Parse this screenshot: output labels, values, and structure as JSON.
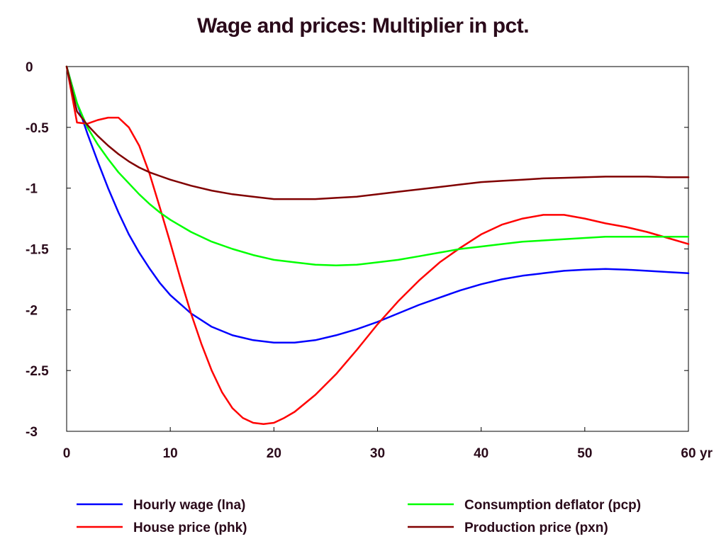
{
  "chart_data": {
    "type": "line",
    "title": "Wage and prices: Multiplier in pct.",
    "xlabel": "",
    "ylabel": "",
    "x_unit": "yr",
    "xlim": [
      0,
      60
    ],
    "ylim": [
      -3,
      0
    ],
    "x_ticks": [
      0,
      10,
      20,
      30,
      40,
      50,
      60
    ],
    "y_ticks": [
      0,
      -0.5,
      -1,
      -1.5,
      -2,
      -2.5,
      -3
    ],
    "x_tick_labels": [
      "0",
      "10",
      "20",
      "30",
      "40",
      "50",
      "60"
    ],
    "y_tick_labels": [
      "0",
      "-0.5",
      "-1",
      "-1.5",
      "-2",
      "-2.5",
      "-3"
    ],
    "grid": false,
    "legend_position": "bottom",
    "series": [
      {
        "name": "Hourly wage (lna)",
        "color": "#0000ff",
        "x": [
          0,
          1,
          2,
          3,
          4,
          5,
          6,
          7,
          8,
          9,
          10,
          12,
          14,
          16,
          18,
          20,
          22,
          24,
          26,
          28,
          30,
          32,
          34,
          36,
          38,
          40,
          42,
          44,
          46,
          48,
          50,
          52,
          54,
          56,
          58,
          60
        ],
        "values": [
          0,
          -0.3,
          -0.55,
          -0.78,
          -1.0,
          -1.2,
          -1.38,
          -1.53,
          -1.66,
          -1.78,
          -1.88,
          -2.03,
          -2.14,
          -2.21,
          -2.25,
          -2.27,
          -2.27,
          -2.25,
          -2.21,
          -2.16,
          -2.1,
          -2.03,
          -1.96,
          -1.9,
          -1.84,
          -1.79,
          -1.75,
          -1.72,
          -1.7,
          -1.68,
          -1.67,
          -1.665,
          -1.67,
          -1.68,
          -1.69,
          -1.7
        ]
      },
      {
        "name": "House price (phk)",
        "color": "#ff0000",
        "x": [
          0,
          1,
          2,
          3,
          4,
          5,
          6,
          7,
          8,
          9,
          10,
          11,
          12,
          13,
          14,
          15,
          16,
          17,
          18,
          19,
          20,
          21,
          22,
          24,
          26,
          28,
          30,
          32,
          34,
          36,
          38,
          40,
          42,
          44,
          46,
          48,
          50,
          52,
          54,
          56,
          58,
          60
        ],
        "values": [
          0,
          -0.46,
          -0.47,
          -0.44,
          -0.42,
          -0.42,
          -0.5,
          -0.65,
          -0.88,
          -1.16,
          -1.45,
          -1.75,
          -2.03,
          -2.28,
          -2.5,
          -2.68,
          -2.81,
          -2.89,
          -2.93,
          -2.94,
          -2.93,
          -2.89,
          -2.84,
          -2.7,
          -2.53,
          -2.33,
          -2.12,
          -1.93,
          -1.76,
          -1.61,
          -1.49,
          -1.38,
          -1.3,
          -1.25,
          -1.22,
          -1.22,
          -1.25,
          -1.29,
          -1.32,
          -1.36,
          -1.41,
          -1.46
        ]
      },
      {
        "name": "Consumption deflator (pcp)",
        "color": "#00ff00",
        "x": [
          0,
          1,
          2,
          3,
          4,
          5,
          6,
          7,
          8,
          9,
          10,
          12,
          14,
          16,
          18,
          20,
          22,
          24,
          26,
          28,
          30,
          32,
          34,
          36,
          38,
          40,
          42,
          44,
          46,
          48,
          50,
          52,
          54,
          56,
          58,
          60
        ],
        "values": [
          0,
          -0.3,
          -0.5,
          -0.64,
          -0.76,
          -0.87,
          -0.96,
          -1.05,
          -1.13,
          -1.2,
          -1.26,
          -1.36,
          -1.44,
          -1.5,
          -1.55,
          -1.59,
          -1.61,
          -1.63,
          -1.635,
          -1.63,
          -1.61,
          -1.59,
          -1.56,
          -1.53,
          -1.5,
          -1.48,
          -1.46,
          -1.44,
          -1.43,
          -1.42,
          -1.41,
          -1.4,
          -1.4,
          -1.4,
          -1.4,
          -1.4
        ]
      },
      {
        "name": "Production price (pxn)",
        "color": "#800000",
        "x": [
          0,
          1,
          2,
          3,
          4,
          5,
          6,
          7,
          8,
          9,
          10,
          12,
          14,
          16,
          18,
          20,
          22,
          24,
          26,
          28,
          30,
          32,
          34,
          36,
          38,
          40,
          42,
          44,
          46,
          48,
          50,
          52,
          54,
          56,
          58,
          60
        ],
        "values": [
          0,
          -0.37,
          -0.48,
          -0.57,
          -0.65,
          -0.72,
          -0.78,
          -0.83,
          -0.87,
          -0.9,
          -0.93,
          -0.98,
          -1.02,
          -1.05,
          -1.07,
          -1.09,
          -1.09,
          -1.09,
          -1.08,
          -1.07,
          -1.05,
          -1.03,
          -1.01,
          -0.99,
          -0.97,
          -0.95,
          -0.94,
          -0.93,
          -0.92,
          -0.915,
          -0.91,
          -0.905,
          -0.905,
          -0.905,
          -0.91,
          -0.91
        ]
      }
    ]
  }
}
